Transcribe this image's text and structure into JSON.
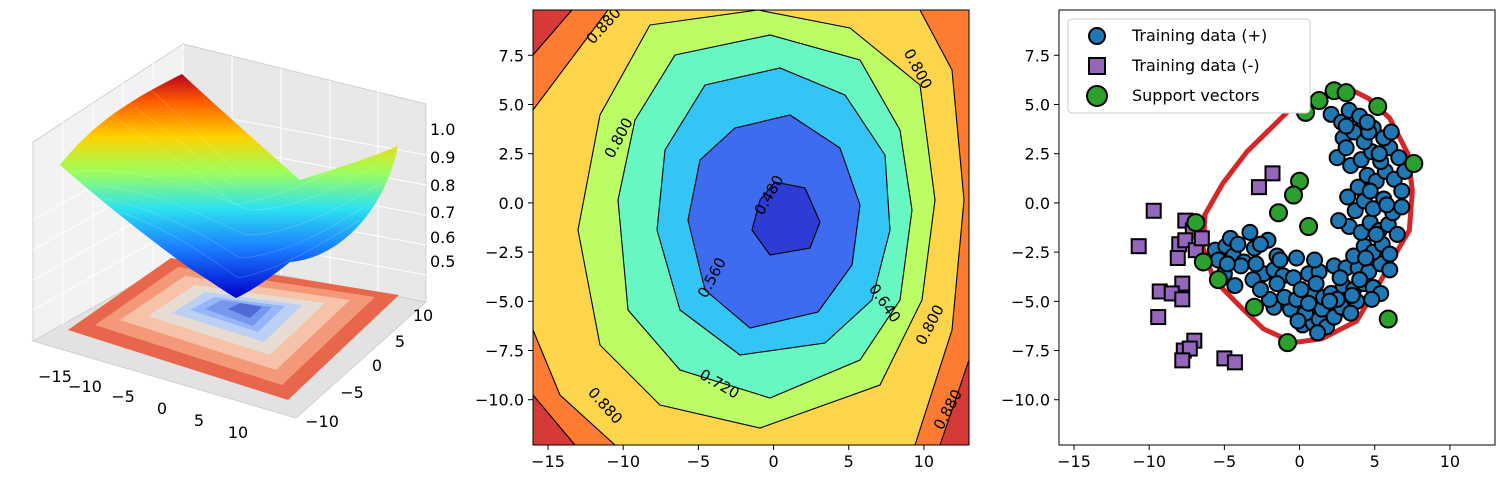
{
  "chart_data": [
    {
      "type": "surface3d",
      "colormap": "jet",
      "x_ticks": [
        "−15",
        "−10",
        "−5",
        "0",
        "5",
        "10"
      ],
      "y_ticks": [
        "−10",
        "−5",
        "0",
        "5",
        "10"
      ],
      "z_ticks": [
        "0.5",
        "0.6",
        "0.7",
        "0.8",
        "0.9",
        "1.0"
      ],
      "zlim": [
        0.45,
        1.05
      ],
      "projected_contour_colormap": "coolwarm",
      "minimum": {
        "x": 0,
        "y": -1,
        "z": 0.46
      }
    },
    {
      "type": "contourf",
      "colormap": "jet",
      "xlim": [
        -16,
        13
      ],
      "ylim": [
        -12.3,
        9.8
      ],
      "x_ticks": [
        "−15",
        "−10",
        "−5",
        "0",
        "5",
        "10"
      ],
      "y_ticks": [
        "−10.0",
        "−7.5",
        "−5.0",
        "−2.5",
        "0.0",
        "2.5",
        "5.0",
        "7.5"
      ],
      "levels": [
        0.48,
        0.56,
        0.64,
        0.72,
        0.8,
        0.88
      ],
      "level_colors": [
        "#2e3cd6",
        "#3d6cf0",
        "#33c5f6",
        "#66f7c2",
        "#bcfd65",
        "#fdd54b",
        "#fd7c32",
        "#d63a37"
      ],
      "contour_labels": [
        {
          "text": "0.480",
          "x": -0.3,
          "y": 0.4
        },
        {
          "text": "0.560",
          "x": -4.1,
          "y": -3.8
        },
        {
          "text": "0.640",
          "x": 7.4,
          "y": -5.1
        },
        {
          "text": "0.720",
          "x": -3.6,
          "y": -9.2
        },
        {
          "text": "0.800",
          "x": -10.3,
          "y": 3.3
        },
        {
          "text": "0.800",
          "x": 9.6,
          "y": 6.8
        },
        {
          "text": "0.800",
          "x": 10.4,
          "y": -6.2
        },
        {
          "text": "0.880",
          "x": -11.3,
          "y": 9.0
        },
        {
          "text": "0.880",
          "x": -11.2,
          "y": -10.3
        },
        {
          "text": "0.880",
          "x": 11.6,
          "y": -10.5
        }
      ]
    },
    {
      "type": "scatter",
      "xlim": [
        -16,
        13
      ],
      "ylim": [
        -12.3,
        9.8
      ],
      "x_ticks": [
        "−15",
        "−10",
        "−5",
        "0",
        "5",
        "10"
      ],
      "y_ticks": [
        "−10.0",
        "−7.5",
        "−5.0",
        "−2.5",
        "0.0",
        "2.5",
        "5.0",
        "7.5"
      ],
      "legend_position": "top-left",
      "series": [
        {
          "name": "Training data (+)",
          "marker": "circle",
          "color": "#1f77b4",
          "points": [
            [
              0.2,
              -6.2
            ],
            [
              0.9,
              -6.1
            ],
            [
              1.3,
              -5.9
            ],
            [
              1.8,
              -6.3
            ],
            [
              -0.6,
              -5.4
            ],
            [
              0.4,
              -5.6
            ],
            [
              1.5,
              -5.4
            ],
            [
              2.3,
              -5.8
            ],
            [
              2.8,
              -5.3
            ],
            [
              -1.7,
              -5.3
            ],
            [
              -2.0,
              -4.9
            ],
            [
              -1.0,
              -4.8
            ],
            [
              -0.2,
              -4.9
            ],
            [
              0.8,
              -4.7
            ],
            [
              1.6,
              -4.8
            ],
            [
              2.1,
              -4.6
            ],
            [
              2.9,
              -4.2
            ],
            [
              3.6,
              -4.4
            ],
            [
              3.8,
              -5.0
            ],
            [
              4.3,
              -4.1
            ],
            [
              4.9,
              -4.3
            ],
            [
              5.4,
              -4.6
            ],
            [
              -2.4,
              -3.6
            ],
            [
              -1.7,
              -3.4
            ],
            [
              -1.1,
              -3.7
            ],
            [
              -0.4,
              -3.8
            ],
            [
              0.6,
              -3.6
            ],
            [
              1.3,
              -3.5
            ],
            [
              2.3,
              -3.2
            ],
            [
              3.1,
              -3.3
            ],
            [
              3.9,
              -3.3
            ],
            [
              4.6,
              -3.5
            ],
            [
              5.4,
              -3.1
            ],
            [
              6.0,
              -3.4
            ],
            [
              -5.6,
              -2.4
            ],
            [
              -4.9,
              -2.2
            ],
            [
              -4.4,
              -2.7
            ],
            [
              -3.7,
              -3.0
            ],
            [
              -3.0,
              -2.3
            ],
            [
              -2.1,
              -1.9
            ],
            [
              -1.5,
              -2.7
            ],
            [
              3.6,
              -2.7
            ],
            [
              4.3,
              -2.2
            ],
            [
              4.9,
              -2.5
            ],
            [
              5.5,
              -2.1
            ],
            [
              6.0,
              -2.6
            ],
            [
              -5.0,
              -3.6
            ],
            [
              -3.9,
              -3.2
            ],
            [
              -4.3,
              -4.2
            ],
            [
              -3.1,
              -3.9
            ],
            [
              -5.4,
              -2.9
            ],
            [
              -4.6,
              -1.8
            ],
            [
              -3.3,
              -1.5
            ],
            [
              -2.6,
              -2.1
            ],
            [
              3.3,
              -1.2
            ],
            [
              4.1,
              -1.5
            ],
            [
              4.7,
              -1.0
            ],
            [
              5.3,
              -1.4
            ],
            [
              5.9,
              -1.1
            ],
            [
              6.5,
              -1.6
            ],
            [
              3.7,
              -0.4
            ],
            [
              4.3,
              0.1
            ],
            [
              4.9,
              -0.3
            ],
            [
              5.6,
              0.2
            ],
            [
              6.2,
              -0.5
            ],
            [
              6.8,
              -0.2
            ],
            [
              2.6,
              -0.9
            ],
            [
              3.9,
              0.8
            ],
            [
              4.5,
              1.4
            ],
            [
              5.1,
              1.1
            ],
            [
              5.7,
              1.6
            ],
            [
              6.3,
              1.2
            ],
            [
              6.8,
              0.6
            ],
            [
              3.4,
              1.9
            ],
            [
              4.1,
              2.2
            ],
            [
              4.8,
              2.6
            ],
            [
              5.4,
              2.1
            ],
            [
              6.0,
              2.8
            ],
            [
              6.6,
              2.3
            ],
            [
              7.0,
              1.6
            ],
            [
              2.9,
              3.3
            ],
            [
              3.6,
              3.6
            ],
            [
              4.3,
              3.1
            ],
            [
              4.9,
              3.8
            ],
            [
              5.6,
              3.3
            ],
            [
              6.1,
              3.6
            ],
            [
              2.5,
              2.3
            ],
            [
              3.1,
              2.8
            ],
            [
              2.1,
              4.5
            ],
            [
              2.8,
              4.1
            ],
            [
              3.3,
              4.7
            ],
            [
              4.0,
              4.4
            ],
            [
              4.6,
              3.6
            ],
            [
              3.1,
              3.9
            ],
            [
              4.5,
              4.1
            ],
            [
              5.3,
              2.5
            ],
            [
              4.7,
              0.6
            ],
            [
              5.8,
              -0.1
            ],
            [
              3.2,
              0.3
            ],
            [
              5.1,
              -1.6
            ],
            [
              4.4,
              -2.8
            ],
            [
              4.0,
              -3.9
            ],
            [
              2.7,
              -3.8
            ],
            [
              1.0,
              -2.9
            ],
            [
              -0.2,
              -2.8
            ],
            [
              -1.3,
              -2.9
            ],
            [
              -2.9,
              -3.1
            ],
            [
              -4.1,
              -2.1
            ],
            [
              -4.8,
              -3.1
            ],
            [
              -2.6,
              -4.4
            ],
            [
              -1.5,
              -4.1
            ],
            [
              0.1,
              -4.4
            ],
            [
              1.1,
              -4.1
            ],
            [
              2.5,
              -4.9
            ],
            [
              3.5,
              -4.7
            ],
            [
              4.8,
              -4.9
            ],
            [
              0.6,
              -5.1
            ],
            [
              -0.1,
              -6.0
            ],
            [
              1.2,
              -6.6
            ],
            [
              2.0,
              -5.0
            ],
            [
              3.4,
              -5.6
            ]
          ]
        },
        {
          "name": "Training data (-)",
          "marker": "square",
          "color": "#9467bd",
          "points": [
            [
              -9.7,
              -0.4
            ],
            [
              -7.6,
              -0.9
            ],
            [
              -7.1,
              -1.4
            ],
            [
              -10.7,
              -2.2
            ],
            [
              -8.0,
              -2.1
            ],
            [
              -7.6,
              -1.9
            ],
            [
              -6.9,
              -2.4
            ],
            [
              -6.5,
              -1.8
            ],
            [
              -8.1,
              -2.8
            ],
            [
              -7.8,
              -4.1
            ],
            [
              -9.3,
              -4.5
            ],
            [
              -8.5,
              -4.6
            ],
            [
              -7.8,
              -4.9
            ],
            [
              -9.4,
              -5.8
            ],
            [
              -7.0,
              -7.0
            ],
            [
              -7.7,
              -7.5
            ],
            [
              -7.3,
              -7.4
            ],
            [
              -7.8,
              -8.0
            ],
            [
              -5.0,
              -7.9
            ],
            [
              -4.3,
              -8.1
            ],
            [
              -2.7,
              0.8
            ],
            [
              -1.8,
              1.5
            ]
          ]
        },
        {
          "name": "Support vectors",
          "marker": "circle",
          "color": "#2ca02c",
          "points": [
            [
              1.3,
              5.2
            ],
            [
              2.3,
              5.7
            ],
            [
              3.1,
              5.6
            ],
            [
              5.2,
              4.9
            ],
            [
              0.4,
              4.6
            ],
            [
              7.6,
              2.0
            ],
            [
              0.0,
              1.1
            ],
            [
              -0.4,
              0.4
            ],
            [
              -1.4,
              -0.5
            ],
            [
              0.6,
              -1.2
            ],
            [
              -6.9,
              -1.0
            ],
            [
              -6.4,
              -3.0
            ],
            [
              -5.4,
              -3.9
            ],
            [
              -3.0,
              -5.3
            ],
            [
              -0.8,
              -7.1
            ],
            [
              5.9,
              -5.9
            ]
          ]
        }
      ],
      "decision_boundary": [
        [
          2.6,
          5.7
        ],
        [
          1.2,
          5.4
        ],
        [
          -0.7,
          4.7
        ],
        [
          -3.5,
          2.6
        ],
        [
          -5.1,
          1.0
        ],
        [
          -6.3,
          -0.6
        ],
        [
          -6.4,
          -2.3
        ],
        [
          -5.7,
          -3.9
        ],
        [
          -3.9,
          -5.3
        ],
        [
          -2.4,
          -6.4
        ],
        [
          -0.4,
          -7.1
        ],
        [
          1.5,
          -6.9
        ],
        [
          3.8,
          -6.0
        ],
        [
          5.3,
          -4.1
        ],
        [
          6.3,
          -2.7
        ],
        [
          7.3,
          -1.4
        ],
        [
          7.5,
          0.6
        ],
        [
          7.2,
          2.5
        ],
        [
          6.0,
          4.3
        ],
        [
          4.6,
          5.3
        ],
        [
          3.3,
          5.8
        ],
        [
          2.6,
          5.7
        ]
      ]
    }
  ]
}
